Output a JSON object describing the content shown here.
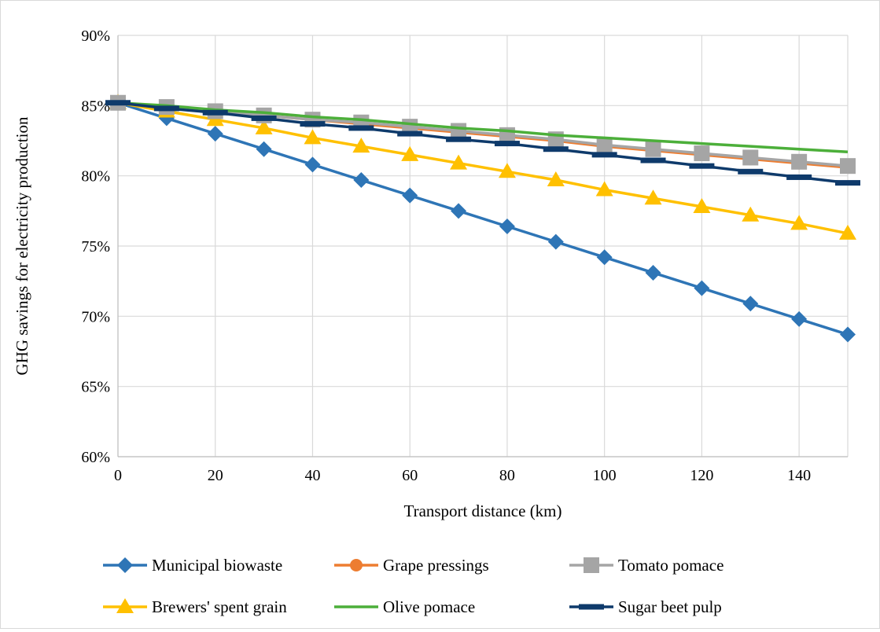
{
  "chart_data": {
    "type": "line",
    "title": "",
    "xlabel": "Transport distance (km)",
    "ylabel": "GHG savings for electricity production",
    "x": [
      0,
      10,
      20,
      30,
      40,
      50,
      60,
      70,
      80,
      90,
      100,
      110,
      120,
      130,
      140,
      150
    ],
    "xlim": [
      0,
      150
    ],
    "ylim": [
      0.6,
      0.9
    ],
    "x_ticks": [
      0,
      20,
      40,
      60,
      80,
      100,
      120,
      140
    ],
    "x_tick_labels": [
      "0",
      "20",
      "40",
      "60",
      "80",
      "100",
      "120",
      "140"
    ],
    "y_ticks": [
      0.6,
      0.65,
      0.7,
      0.75,
      0.8,
      0.85,
      0.9
    ],
    "y_tick_labels": [
      "60%",
      "65%",
      "70%",
      "75%",
      "80%",
      "85%",
      "90%"
    ],
    "grid": "both",
    "legend_position": "bottom",
    "series": [
      {
        "name": "Municipal biowaste",
        "color": "#2e75b6",
        "marker": "diamond",
        "values": [
          0.852,
          0.841,
          0.83,
          0.819,
          0.808,
          0.797,
          0.786,
          0.775,
          0.764,
          0.753,
          0.742,
          0.731,
          0.72,
          0.709,
          0.698,
          0.687
        ]
      },
      {
        "name": "Grape pressings",
        "color": "#ed7d31",
        "marker": "circle",
        "values": [
          0.852,
          0.849,
          0.846,
          0.843,
          0.84,
          0.837,
          0.834,
          0.831,
          0.828,
          0.825,
          0.821,
          0.818,
          0.815,
          0.812,
          0.809,
          0.806
        ]
      },
      {
        "name": "Tomato pomace",
        "color": "#a5a5a5",
        "marker": "square",
        "values": [
          0.852,
          0.849,
          0.846,
          0.843,
          0.84,
          0.838,
          0.835,
          0.832,
          0.829,
          0.826,
          0.822,
          0.819,
          0.816,
          0.813,
          0.81,
          0.807
        ]
      },
      {
        "name": "Brewers' spent grain",
        "color": "#ffc000",
        "marker": "triangle",
        "values": [
          0.852,
          0.846,
          0.84,
          0.834,
          0.827,
          0.821,
          0.815,
          0.809,
          0.803,
          0.797,
          0.79,
          0.784,
          0.778,
          0.772,
          0.766,
          0.759
        ]
      },
      {
        "name": "Olive pomace",
        "color": "#4caf3a",
        "marker": "none",
        "values": [
          0.852,
          0.85,
          0.847,
          0.845,
          0.842,
          0.84,
          0.837,
          0.834,
          0.832,
          0.829,
          0.827,
          0.825,
          0.823,
          0.821,
          0.819,
          0.817
        ]
      },
      {
        "name": "Sugar beet pulp",
        "color": "#0e3a6b",
        "marker": "dash",
        "values": [
          0.852,
          0.848,
          0.845,
          0.841,
          0.837,
          0.834,
          0.83,
          0.826,
          0.823,
          0.819,
          0.815,
          0.811,
          0.807,
          0.803,
          0.799,
          0.795
        ]
      }
    ]
  }
}
